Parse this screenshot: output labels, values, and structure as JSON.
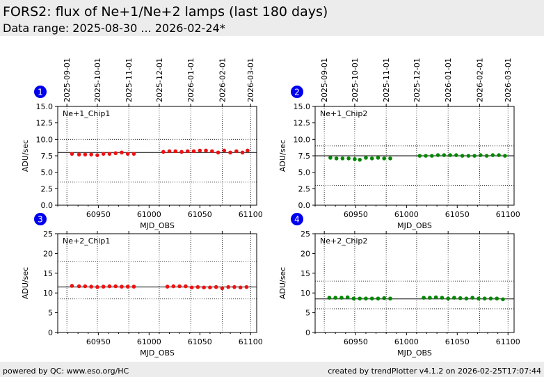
{
  "header": {
    "title": "FORS2: flux of Ne+1/Ne+2 lamps (last 180 days)",
    "subtitle": "Data range: 2025-08-30 ... 2026-02-24*"
  },
  "footer": {
    "left": "powered by QC: www.eso.org/HC",
    "right": "created by trendPlotter v4.1.2 on 2026-02-25T17:07:44"
  },
  "chart_data": [
    {
      "type": "scatter",
      "badge": "1",
      "label": "Ne+1_Chip1",
      "xlabel": "MJD_OBS",
      "ylabel": "ADU/sec",
      "xlim": [
        60910,
        61106
      ],
      "ylim": [
        0,
        15
      ],
      "yticks": [
        "0.0",
        "2.5",
        "5.0",
        "7.5",
        "10.0",
        "12.5",
        "15.0"
      ],
      "ytick_values": [
        0,
        2.5,
        5,
        7.5,
        10,
        12.5,
        15
      ],
      "xticks": [
        "60950",
        "61000",
        "61050",
        "61100"
      ],
      "xtick_values": [
        60950,
        61000,
        61050,
        61100
      ],
      "dates": [
        "2025-09-01",
        "2025-10-01",
        "2025-11-01",
        "2025-12-01",
        "2026-01-01",
        "2026-02-01",
        "2026-03-01"
      ],
      "date_values": [
        60919,
        60949,
        60980,
        61010,
        61041,
        61072,
        61100
      ],
      "ref_line": 8.0,
      "limits": [
        3.5,
        10.0
      ],
      "point_color": "#ee1111",
      "x": [
        60924,
        60931,
        60937,
        60943,
        60949,
        60955,
        60961,
        60967,
        60973,
        60979,
        60985,
        61014,
        61020,
        61026,
        61032,
        61038,
        61044,
        61050,
        61056,
        61062,
        61068,
        61074,
        61080,
        61086,
        61092,
        61097
      ],
      "y": [
        7.8,
        7.7,
        7.7,
        7.7,
        7.6,
        7.8,
        7.8,
        7.9,
        8.0,
        7.8,
        7.8,
        8.1,
        8.2,
        8.2,
        8.1,
        8.2,
        8.2,
        8.3,
        8.3,
        8.2,
        8.0,
        8.3,
        8.0,
        8.2,
        8.0,
        8.3
      ]
    },
    {
      "type": "scatter",
      "badge": "2",
      "label": "Ne+1_Chip2",
      "xlabel": "MJD_OBS",
      "ylabel": "ADU/sec",
      "xlim": [
        60910,
        61106
      ],
      "ylim": [
        0,
        15
      ],
      "yticks": [
        "0.0",
        "2.5",
        "5.0",
        "7.5",
        "10.0",
        "12.5",
        "15.0"
      ],
      "ytick_values": [
        0,
        2.5,
        5,
        7.5,
        10,
        12.5,
        15
      ],
      "xticks": [
        "60950",
        "61000",
        "61050",
        "61100"
      ],
      "xtick_values": [
        60950,
        61000,
        61050,
        61100
      ],
      "dates": [
        "2025-09-01",
        "2025-10-01",
        "2025-11-01",
        "2025-12-01",
        "2026-01-01",
        "2026-02-01",
        "2026-03-01"
      ],
      "date_values": [
        60919,
        60949,
        60980,
        61010,
        61041,
        61072,
        61100
      ],
      "ref_line": 7.5,
      "limits": [
        3.0,
        9.0
      ],
      "point_color": "#008800",
      "x": [
        60925,
        60931,
        60937,
        60943,
        60949,
        60954,
        60960,
        60966,
        60972,
        60978,
        60984,
        61013,
        61019,
        61025,
        61031,
        61037,
        61043,
        61049,
        61055,
        61061,
        61067,
        61073,
        61079,
        61085,
        61091,
        61097
      ],
      "y": [
        7.2,
        7.1,
        7.1,
        7.1,
        7.0,
        6.9,
        7.2,
        7.1,
        7.2,
        7.1,
        7.1,
        7.5,
        7.5,
        7.5,
        7.6,
        7.6,
        7.6,
        7.6,
        7.5,
        7.5,
        7.5,
        7.6,
        7.5,
        7.6,
        7.6,
        7.5
      ]
    },
    {
      "type": "scatter",
      "badge": "3",
      "label": "Ne+2_Chip1",
      "xlabel": "MJD_OBS",
      "ylabel": "ADU/sec",
      "xlim": [
        60910,
        61106
      ],
      "ylim": [
        0,
        25
      ],
      "yticks": [
        "0",
        "5",
        "10",
        "15",
        "20",
        "25"
      ],
      "ytick_values": [
        0,
        5,
        10,
        15,
        20,
        25
      ],
      "xticks": [
        "60950",
        "61000",
        "61050",
        "61100"
      ],
      "xtick_values": [
        60950,
        61000,
        61050,
        61100
      ],
      "date_values": [
        60919,
        60949,
        60980,
        61010,
        61041,
        61072,
        61100
      ],
      "ref_line": 11.5,
      "limits": [
        8.5,
        18.0
      ],
      "point_color": "#ee1111",
      "x": [
        60924,
        60931,
        60937,
        60943,
        60949,
        60955,
        60961,
        60967,
        60973,
        60979,
        60985,
        61018,
        61024,
        61030,
        61036,
        61042,
        61048,
        61054,
        61060,
        61066,
        61072,
        61078,
        61084,
        61090,
        61096
      ],
      "y": [
        11.8,
        11.7,
        11.7,
        11.6,
        11.5,
        11.6,
        11.7,
        11.7,
        11.6,
        11.6,
        11.6,
        11.6,
        11.7,
        11.7,
        11.7,
        11.4,
        11.5,
        11.4,
        11.4,
        11.5,
        11.2,
        11.5,
        11.5,
        11.4,
        11.5
      ]
    },
    {
      "type": "scatter",
      "badge": "4",
      "label": "Ne+2_Chip2",
      "xlabel": "MJD_OBS",
      "ylabel": "ADU/sec",
      "xlim": [
        60910,
        61106
      ],
      "ylim": [
        0,
        25
      ],
      "yticks": [
        "0",
        "5",
        "10",
        "15",
        "20",
        "25"
      ],
      "ytick_values": [
        0,
        5,
        10,
        15,
        20,
        25
      ],
      "xticks": [
        "60950",
        "61000",
        "61050",
        "61100"
      ],
      "xtick_values": [
        60950,
        61000,
        61050,
        61100
      ],
      "date_values": [
        60919,
        60949,
        60980,
        61010,
        61041,
        61072,
        61100
      ],
      "ref_line": 8.5,
      "limits": [
        6.0,
        13.0
      ],
      "point_color": "#008800",
      "x": [
        60924,
        60930,
        60936,
        60942,
        60948,
        60954,
        60960,
        60966,
        60972,
        60978,
        60984,
        61017,
        61023,
        61029,
        61035,
        61041,
        61047,
        61053,
        61059,
        61065,
        61071,
        61077,
        61083,
        61089,
        61095
      ],
      "y": [
        8.8,
        8.8,
        8.8,
        8.9,
        8.6,
        8.6,
        8.6,
        8.6,
        8.6,
        8.7,
        8.6,
        8.8,
        8.8,
        8.9,
        8.8,
        8.6,
        8.8,
        8.7,
        8.6,
        8.8,
        8.6,
        8.6,
        8.6,
        8.6,
        8.4
      ]
    }
  ]
}
